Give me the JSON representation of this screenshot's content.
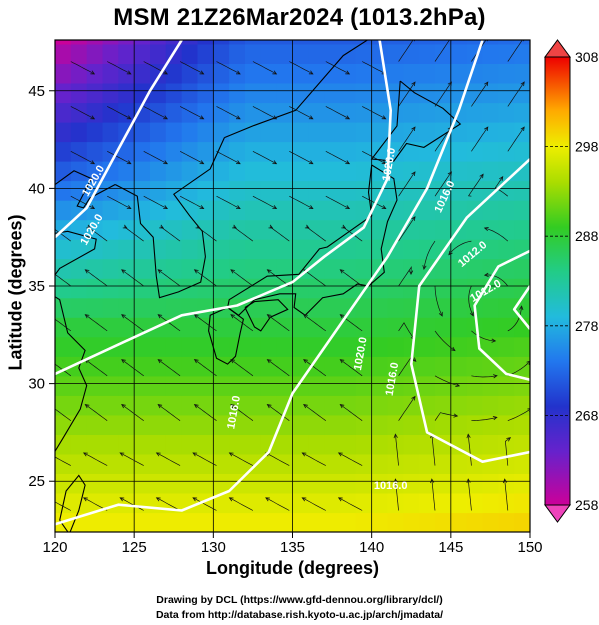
{
  "title": "MSM 21Z26Mar2024 (1013.2hPa)",
  "chart_data": {
    "type": "heatmap",
    "xlabel": "Longitude (degrees)",
    "ylabel": "Latitude  (degrees)",
    "xlim": [
      120,
      150
    ],
    "ylim": [
      22.4,
      47.6
    ],
    "x_ticks": [
      "120",
      "125",
      "130",
      "135",
      "140",
      "145",
      "150"
    ],
    "y_ticks": [
      "25",
      "30",
      "35",
      "40",
      "45"
    ],
    "colorbar": {
      "min": 258,
      "max": 308,
      "ticks": [
        "258",
        "268",
        "278",
        "288",
        "298",
        "308"
      ],
      "colors": [
        "#cc0099",
        "#3333cc",
        "#2288ee",
        "#22cccc",
        "#22cc55",
        "#aadd00",
        "#eeee00",
        "#ff8800",
        "#ee0000"
      ]
    },
    "isobar_labels": [
      "1020.0",
      "1020.0",
      "1020.0",
      "1020.0",
      "1016.0",
      "1016.0",
      "1016.0",
      "1016.0",
      "1012.0",
      "1012.0"
    ]
  },
  "credits": {
    "line1": "Drawing by DCL (https://www.gfd-dennou.org/library/dcl/)",
    "line2": "Data from http://database.rish.kyoto-u.ac.jp/arch/jmadata/"
  }
}
